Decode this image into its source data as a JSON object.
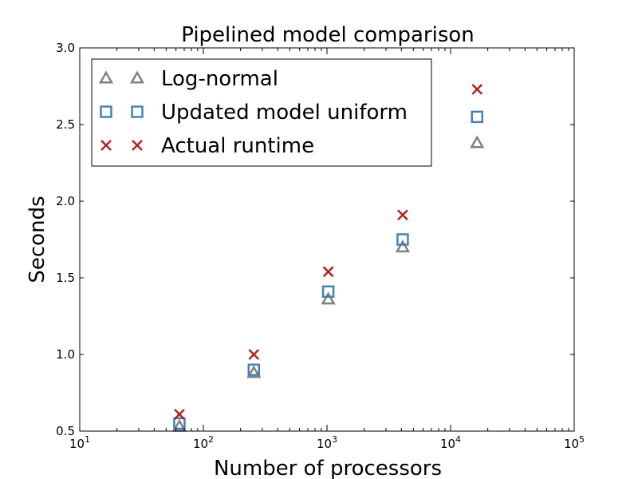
{
  "chart_data": {
    "type": "scatter",
    "title": "Pipelined model comparison",
    "xlabel": "Number of processors",
    "ylabel": "Seconds",
    "xscale": "log",
    "xlim": [
      10,
      100000
    ],
    "ylim": [
      0.5,
      3.0
    ],
    "x_ticks": [
      {
        "value": 10,
        "base": "10",
        "exp": "1"
      },
      {
        "value": 100,
        "base": "10",
        "exp": "2"
      },
      {
        "value": 1000,
        "base": "10",
        "exp": "3"
      },
      {
        "value": 10000,
        "base": "10",
        "exp": "4"
      },
      {
        "value": 100000,
        "base": "10",
        "exp": "5"
      }
    ],
    "y_ticks": [
      {
        "value": 0.5,
        "label": "0.5"
      },
      {
        "value": 1.0,
        "label": "1.0"
      },
      {
        "value": 1.5,
        "label": "1.5"
      },
      {
        "value": 2.0,
        "label": "2.0"
      },
      {
        "value": 2.5,
        "label": "2.5"
      },
      {
        "value": 3.0,
        "label": "3.0"
      }
    ],
    "grid": false,
    "legend_position": "top-left",
    "series": [
      {
        "name": "Log-normal",
        "marker": "triangle",
        "color": "#808080",
        "points": [
          {
            "x": 64,
            "y": 0.53
          },
          {
            "x": 256,
            "y": 0.88
          },
          {
            "x": 1024,
            "y": 1.36
          },
          {
            "x": 4096,
            "y": 1.7
          },
          {
            "x": 16384,
            "y": 2.38
          }
        ]
      },
      {
        "name": "Updated model uniform",
        "marker": "square",
        "color": "#4682b4",
        "points": [
          {
            "x": 64,
            "y": 0.55
          },
          {
            "x": 256,
            "y": 0.9
          },
          {
            "x": 1024,
            "y": 1.41
          },
          {
            "x": 4096,
            "y": 1.75
          },
          {
            "x": 16384,
            "y": 2.55
          }
        ]
      },
      {
        "name": "Actual runtime",
        "marker": "x",
        "color": "#b22222",
        "points": [
          {
            "x": 64,
            "y": 0.61
          },
          {
            "x": 256,
            "y": 1.0
          },
          {
            "x": 1024,
            "y": 1.54
          },
          {
            "x": 4096,
            "y": 1.91
          },
          {
            "x": 16384,
            "y": 2.73
          }
        ]
      }
    ]
  }
}
